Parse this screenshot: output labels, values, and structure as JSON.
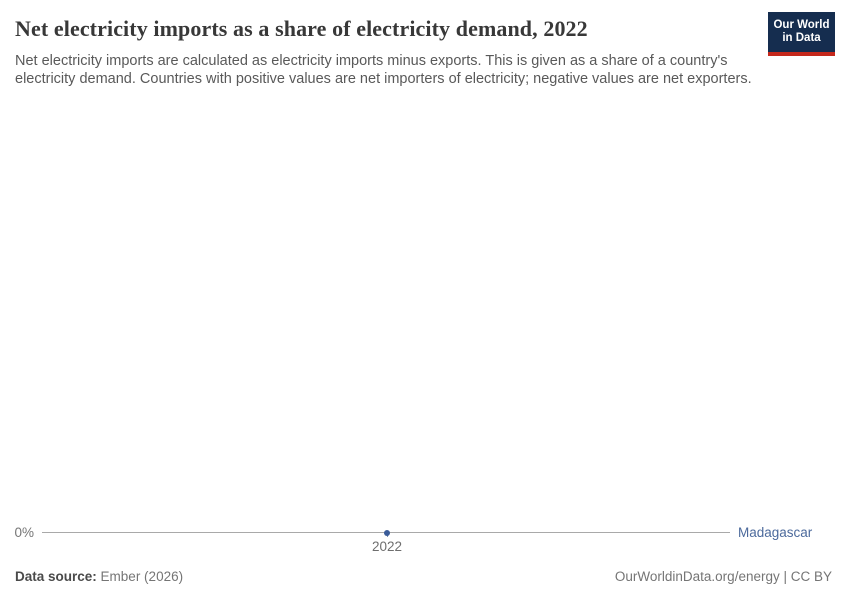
{
  "header": {
    "title": "Net electricity imports as a share of electricity demand, 2022",
    "subtitle": "Net electricity imports are calculated as electricity imports minus exports. This is given as a share of a country's electricity demand. Countries with positive values are net importers of electricity; negative values are net exporters.",
    "logo": {
      "line1": "Our World",
      "line2": "in Data",
      "bg_color": "#152d4f",
      "stripe_color": "#c5281c"
    }
  },
  "chart_data": {
    "type": "line",
    "title": "Net electricity imports as a share of electricity demand, 2022",
    "x": [
      2022
    ],
    "xticks": [
      "2022"
    ],
    "yticks": [
      "0%"
    ],
    "xlabel": "",
    "ylabel": "",
    "unit": "%",
    "series": [
      {
        "name": "Madagascar",
        "values": [
          0
        ],
        "color": "#4c6a9c"
      }
    ],
    "legend_position": "right-end-of-axis-line",
    "grid": "single-zero-line",
    "axis_line_color": "#a9a9a9"
  },
  "footer": {
    "source_label": "Data source:",
    "source_value": "Ember (2026)",
    "attribution": "OurWorldinData.org/energy | CC BY"
  }
}
